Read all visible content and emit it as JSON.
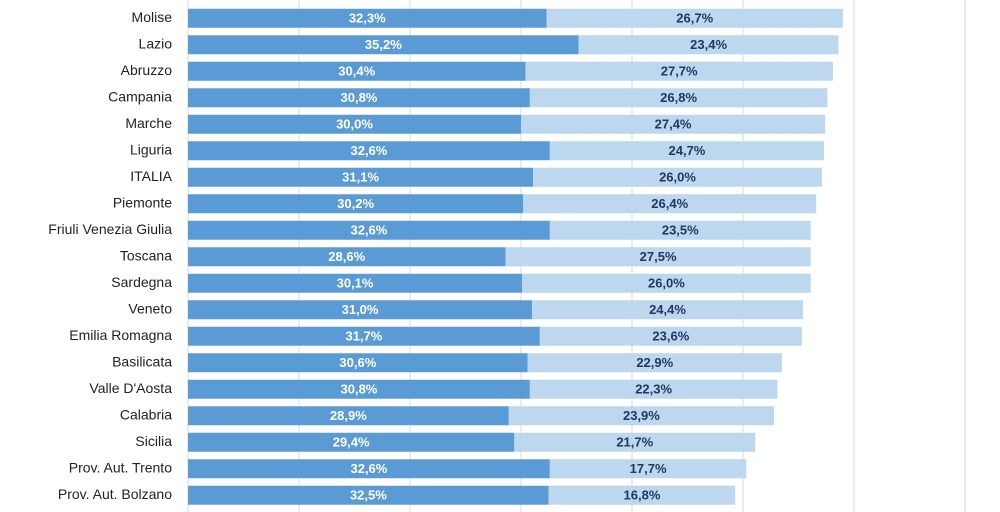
{
  "chart_data": {
    "type": "bar",
    "orientation": "horizontal",
    "stacked": true,
    "categories": [
      "Molise",
      "Lazio",
      "Abruzzo",
      "Campania",
      "Marche",
      "Liguria",
      "ITALIA",
      "Piemonte",
      "Friuli Venezia Giulia",
      "Toscana",
      "Sardegna",
      "Veneto",
      "Emilia Romagna",
      "Basilicata",
      "Valle D'Aosta",
      "Calabria",
      "Sicilia",
      "Prov. Aut. Trento",
      "Prov. Aut. Bolzano"
    ],
    "series": [
      {
        "values": [
          32.3,
          35.2,
          30.4,
          30.8,
          30.0,
          32.6,
          31.1,
          30.2,
          32.6,
          28.6,
          30.1,
          31.0,
          31.7,
          30.6,
          30.8,
          28.9,
          29.4,
          32.6,
          32.5
        ],
        "labels": [
          "32,3%",
          "35,2%",
          "30,4%",
          "30,8%",
          "30,0%",
          "32,6%",
          "31,1%",
          "30,2%",
          "32,6%",
          "28,6%",
          "30,1%",
          "31,0%",
          "31,7%",
          "30,6%",
          "30,8%",
          "28,9%",
          "29,4%",
          "32,6%",
          "32,5%"
        ],
        "color": "#5b9bd5",
        "label_color": "#ffffff"
      },
      {
        "values": [
          26.7,
          23.4,
          27.7,
          26.8,
          27.4,
          24.7,
          26.0,
          26.4,
          23.5,
          27.5,
          26.0,
          24.4,
          23.6,
          22.9,
          22.3,
          23.9,
          21.7,
          17.7,
          16.8
        ],
        "labels": [
          "26,7%",
          "23,4%",
          "27,7%",
          "26,8%",
          "27,4%",
          "24,7%",
          "26,0%",
          "26,4%",
          "23,5%",
          "27,5%",
          "26,0%",
          "24,4%",
          "23,6%",
          "22,9%",
          "22,3%",
          "23,9%",
          "21,7%",
          "17,7%",
          "16,8%"
        ],
        "color": "#bdd7ee",
        "label_color": "#1f3864"
      }
    ],
    "xlim": [
      0,
      70
    ],
    "grid": true,
    "grid_color": "#d9d9d9",
    "legend": "none"
  }
}
